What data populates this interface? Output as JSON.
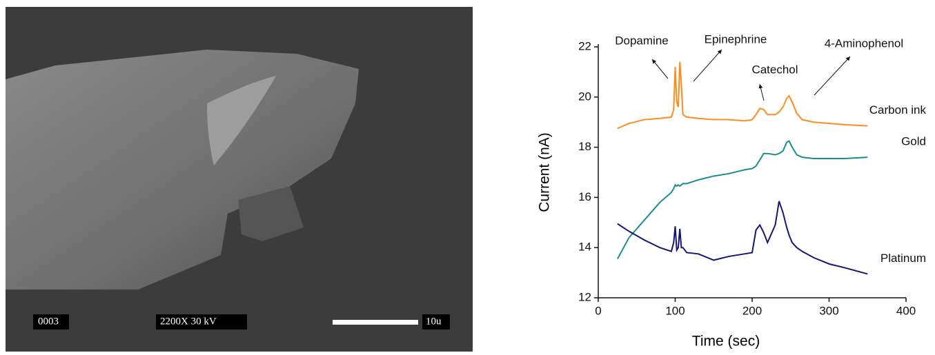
{
  "image_labels": [
    "0003",
    "2200X  30 kV",
    "10u"
  ],
  "chart_data": {
    "type": "line",
    "x_label": "Time (sec)",
    "y_label": "Current (nA)",
    "xlim": [
      0,
      400
    ],
    "xticks": [
      0,
      100,
      200,
      300,
      400
    ],
    "ylim": [
      12,
      22
    ],
    "yticks": [
      12,
      14,
      16,
      18,
      20,
      22
    ],
    "annotations": [
      "Dopamine",
      "Epinephrine",
      "Catechol",
      "4-Aminophenol"
    ],
    "x": [
      25,
      40,
      60,
      80,
      95,
      98,
      100,
      102,
      104,
      106,
      108,
      110,
      115,
      130,
      150,
      170,
      190,
      200,
      205,
      210,
      215,
      220,
      230,
      235,
      240,
      245,
      248,
      252,
      258,
      265,
      280,
      300,
      320,
      350
    ],
    "series": [
      {
        "name": "Carbon ink",
        "color": "#ff8c1a",
        "values": [
          18.75,
          18.95,
          19.1,
          19.15,
          19.2,
          19.5,
          21.2,
          19.8,
          19.6,
          21.4,
          20.5,
          19.3,
          19.2,
          19.15,
          19.1,
          19.1,
          19.05,
          19.1,
          19.3,
          19.55,
          19.5,
          19.3,
          19.3,
          19.4,
          19.6,
          19.95,
          20.05,
          19.8,
          19.35,
          19.1,
          19.0,
          18.95,
          18.9,
          18.85
        ]
      },
      {
        "name": "Gold",
        "color": "#1a8c8c",
        "values": [
          13.55,
          14.4,
          15.1,
          15.8,
          16.2,
          16.35,
          16.5,
          16.45,
          16.5,
          16.45,
          16.5,
          16.55,
          16.55,
          16.7,
          16.85,
          16.95,
          17.1,
          17.15,
          17.25,
          17.5,
          17.75,
          17.75,
          17.7,
          17.75,
          17.85,
          18.2,
          18.25,
          18.0,
          17.7,
          17.6,
          17.55,
          17.55,
          17.55,
          17.6
        ]
      },
      {
        "name": "Platinum",
        "color": "#14147a",
        "values": [
          14.95,
          14.65,
          14.3,
          14.0,
          13.85,
          14.2,
          14.85,
          13.9,
          14.0,
          14.75,
          14.0,
          14.0,
          13.8,
          13.75,
          13.5,
          13.65,
          13.75,
          13.8,
          14.7,
          14.9,
          14.6,
          14.2,
          14.9,
          15.85,
          15.4,
          14.8,
          14.5,
          14.2,
          14.0,
          13.85,
          13.6,
          13.35,
          13.2,
          12.95
        ]
      }
    ]
  }
}
